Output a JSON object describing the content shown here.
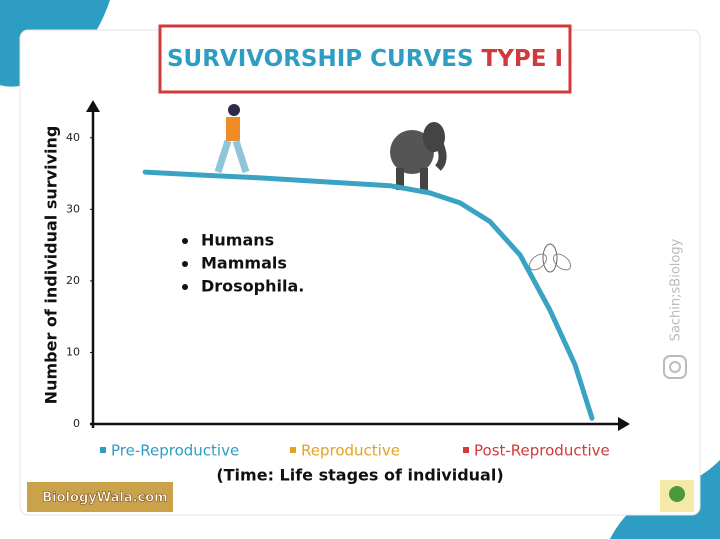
{
  "chart_data": {
    "type": "line",
    "title_parts": [
      "SURVIVORSHIP CURVES",
      "TYPE I"
    ],
    "title_colors": [
      "#2e9dc4",
      "#d03a3a"
    ],
    "y_label": "Number of individual surviving",
    "x_label": "(Time: Life stages of individual)",
    "x": [
      9.8,
      20.1,
      31.4,
      44.5,
      55.8,
      63.3,
      69.0,
      74.6,
      80.3,
      85.9,
      90.6,
      93.8
    ],
    "values": [
      35.2,
      34.8,
      34.4,
      33.8,
      33.3,
      32.3,
      30.9,
      28.3,
      23.6,
      15.9,
      8.3,
      0.8
    ],
    "color": "#3aa3c4",
    "xlim": [
      0,
      100
    ],
    "ylim": [
      0,
      45
    ],
    "yticks": [
      0,
      10,
      20,
      30,
      40
    ],
    "grid": false,
    "stages": [
      {
        "label": "Pre-Reproductive",
        "color": "#2e9dc4"
      },
      {
        "label": "Reproductive",
        "color": "#e8a020"
      },
      {
        "label": "Post-Reproductive",
        "color": "#d03a3a"
      }
    ],
    "annotations": [
      "Humans",
      "Mammals",
      "Drosophila."
    ],
    "watermark": "Sachin;sBiology",
    "logo": "BiologyWala.com"
  }
}
